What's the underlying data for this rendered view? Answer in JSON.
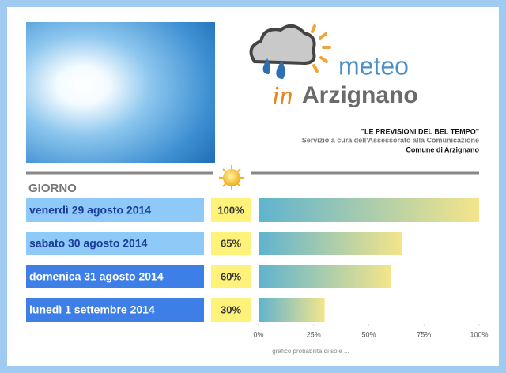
{
  "header": {
    "logo_line1": "meteo",
    "logo_line2_prefix": "in",
    "logo_line2": "Arzignano",
    "title": "\"LE PREVISIONI DEL BEL TEMPO\"",
    "subtitle": "Servizio a cura dell'Assessorato alla Comunicazione",
    "organization": "Comune di Arzignano"
  },
  "chart_data": {
    "type": "bar",
    "category_header": "GIORNO",
    "categories": [
      "venerdì 29 agosto 2014",
      "sabato 30 agosto 2014",
      "domenica 31 agosto 2014",
      "lunedì 1 settembre 2014"
    ],
    "values": [
      100,
      65,
      60,
      30
    ],
    "value_labels": [
      "100%",
      "65%",
      "60%",
      "30%"
    ],
    "label_colors": [
      "#8fc9f7",
      "#8fc9f7",
      "#3d7fe6",
      "#3d7fe6"
    ],
    "xlim": [
      0,
      100
    ],
    "xticks": [
      {
        "value": 0,
        "label": "0%"
      },
      {
        "value": 25,
        "label": "25%"
      },
      {
        "value": 50,
        "label": "50%"
      },
      {
        "value": 75,
        "label": "75%"
      },
      {
        "value": 100,
        "label": "100%"
      }
    ],
    "caption": "grafico probabilità di sole ..."
  }
}
